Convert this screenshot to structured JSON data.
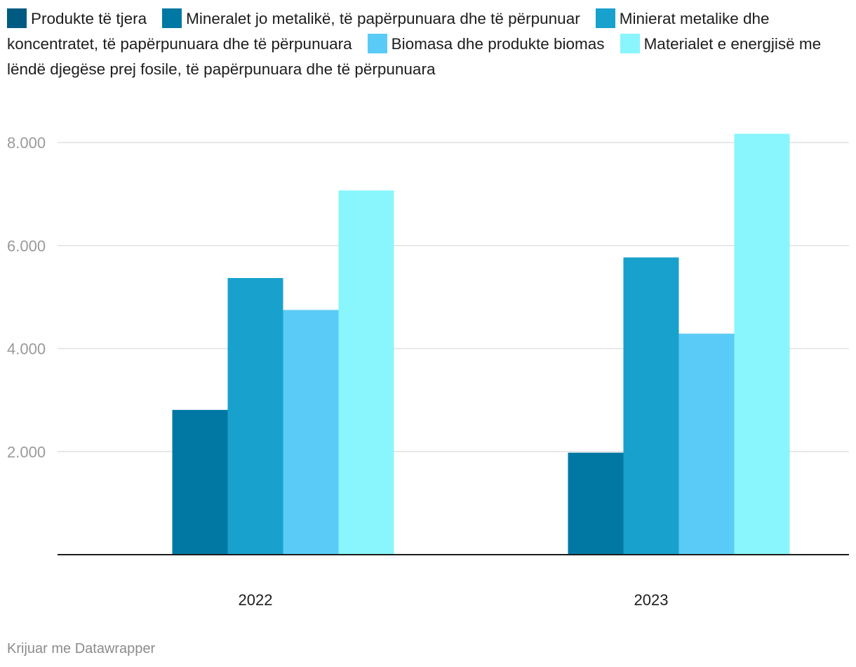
{
  "chart_data": {
    "type": "bar",
    "title": "",
    "xlabel": "",
    "ylabel": "",
    "categories": [
      "2022",
      "2023"
    ],
    "series": [
      {
        "name": "Produkte të tjera",
        "color": "#005a82",
        "values": [
          null,
          null
        ]
      },
      {
        "name": "Mineralet jo metalikë, të papërpunuara dhe të përpunuar",
        "color": "#0078a3",
        "values": [
          2810,
          1980
        ]
      },
      {
        "name": "Minierat metalike dhe koncentratet, të papërpunuara dhe të përpunuara",
        "color": "#18a1cd",
        "values": [
          5370,
          5770
        ]
      },
      {
        "name": "Biomasa dhe produkte biomas",
        "color": "#5acbf6",
        "values": [
          4750,
          4290
        ]
      },
      {
        "name": "Materialet e energjisë me lëndë djegëse prej fosile, të papërpunuara dhe të përpunuara",
        "color": "#89f5fd",
        "values": [
          7070,
          8170
        ]
      }
    ],
    "yticks": [
      2000,
      4000,
      6000,
      8000
    ],
    "ytick_labels": [
      "2.000",
      "4.000",
      "6.000",
      "8.000"
    ],
    "ylim": [
      0,
      8500
    ],
    "grid": true,
    "legend": "top"
  },
  "footer": {
    "credit": "Krijuar me Datawrapper"
  }
}
